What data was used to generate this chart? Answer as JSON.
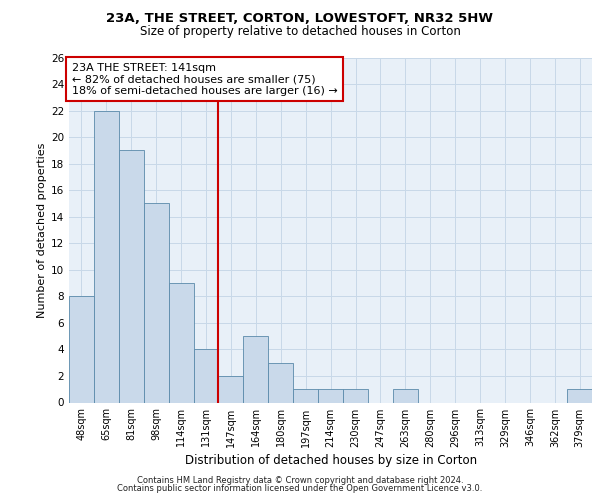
{
  "title1": "23A, THE STREET, CORTON, LOWESTOFT, NR32 5HW",
  "title2": "Size of property relative to detached houses in Corton",
  "xlabel": "Distribution of detached houses by size in Corton",
  "ylabel": "Number of detached properties",
  "categories": [
    "48sqm",
    "65sqm",
    "81sqm",
    "98sqm",
    "114sqm",
    "131sqm",
    "147sqm",
    "164sqm",
    "180sqm",
    "197sqm",
    "214sqm",
    "230sqm",
    "247sqm",
    "263sqm",
    "280sqm",
    "296sqm",
    "313sqm",
    "329sqm",
    "346sqm",
    "362sqm",
    "379sqm"
  ],
  "values": [
    8,
    22,
    19,
    15,
    9,
    4,
    2,
    5,
    3,
    1,
    1,
    1,
    0,
    1,
    0,
    0,
    0,
    0,
    0,
    0,
    1
  ],
  "bar_color": "#c9d9ea",
  "bar_edge_color": "#5a8aaa",
  "vline_index": 6.0,
  "vline_color": "#cc0000",
  "ann_line1": "23A THE STREET: 141sqm",
  "ann_line2": "← 82% of detached houses are smaller (75)",
  "ann_line3": "18% of semi-detached houses are larger (16) →",
  "ylim_max": 26,
  "yticks": [
    0,
    2,
    4,
    6,
    8,
    10,
    12,
    14,
    16,
    18,
    20,
    22,
    24,
    26
  ],
  "grid_color": "#c8d8e8",
  "bg_color": "#e8f0f8",
  "footer1": "Contains HM Land Registry data © Crown copyright and database right 2024.",
  "footer2": "Contains public sector information licensed under the Open Government Licence v3.0."
}
